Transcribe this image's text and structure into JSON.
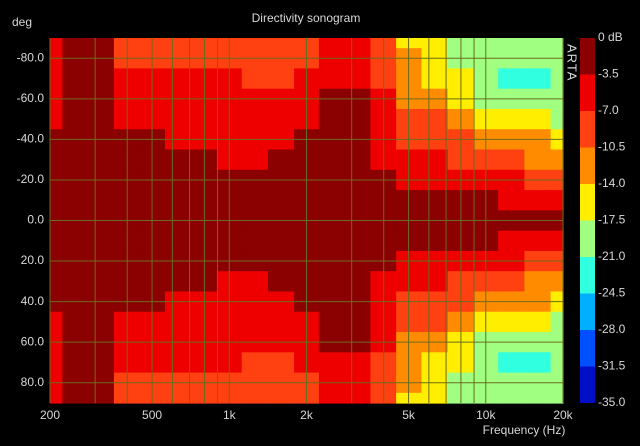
{
  "chart_data": {
    "type": "heatmap",
    "title": "Directivity sonogram",
    "y_label": "deg",
    "x_label": "Frequency (Hz)",
    "watermark": "ARTA",
    "log_x": true,
    "grid": true,
    "xlim": [
      200,
      20000
    ],
    "xticks": [
      200,
      500,
      {
        "value": 1000,
        "label": "1k"
      },
      {
        "value": 2000,
        "label": "2k"
      },
      {
        "value": 5000,
        "label": "5k"
      },
      {
        "value": 10000,
        "label": "10k"
      },
      {
        "value": 20000,
        "label": "20k"
      }
    ],
    "xminor_ticks": [
      300,
      400,
      600,
      700,
      800,
      900,
      3000,
      4000,
      6000,
      7000,
      8000,
      9000
    ],
    "ylim": [
      -90,
      90
    ],
    "yticks": [
      {
        "value": -80,
        "label": "-80.0"
      },
      {
        "value": -60,
        "label": "-60.0"
      },
      {
        "value": -40,
        "label": "-40.0"
      },
      {
        "value": -20,
        "label": "-20.0"
      },
      {
        "value": 0,
        "label": "0.0"
      },
      {
        "value": 20,
        "label": "20.0"
      },
      {
        "value": 40,
        "label": "40.0"
      },
      {
        "value": 60,
        "label": "60.0"
      },
      {
        "value": 80,
        "label": "80.0"
      }
    ],
    "x": [
      200,
      250,
      315,
      400,
      500,
      630,
      800,
      1000,
      1250,
      1600,
      2000,
      2500,
      3150,
      4000,
      5000,
      6300,
      8000,
      10000,
      12500,
      16000,
      20000
    ],
    "y": [
      -90,
      -80,
      -70,
      -60,
      -50,
      -40,
      -30,
      -20,
      -10,
      0,
      10,
      20,
      30,
      40,
      50,
      60,
      70,
      80,
      90
    ],
    "z": [
      [
        -6,
        -3,
        -3,
        -8,
        -9,
        -9,
        -9,
        -9,
        -10,
        -10,
        -8,
        -6,
        -6,
        -10,
        -15,
        -17,
        -20,
        -19,
        -19,
        -18,
        -18
      ],
      [
        -6,
        -3,
        -3,
        -7.5,
        -8,
        -8,
        -8,
        -8,
        -9,
        -9,
        -7.5,
        -5,
        -5,
        -9,
        -13,
        -16,
        -19,
        -20,
        -20,
        -19,
        -19
      ],
      [
        -5,
        -3,
        -2.5,
        -6,
        -6,
        -7,
        -7,
        -7,
        -7.5,
        -8,
        -6,
        -4,
        -4,
        -7.5,
        -12,
        -14.5,
        -17,
        -19,
        -22,
        -22,
        -21
      ],
      [
        -5,
        -2.5,
        -2,
        -5,
        -5.5,
        -6,
        -6,
        -6,
        -6.5,
        -6.5,
        -5,
        -3,
        -3,
        -6,
        -11,
        -12,
        -15,
        -18,
        -19,
        -19,
        -19
      ],
      [
        -4,
        -2,
        -1.5,
        -4,
        -5,
        -5,
        -5,
        -5.5,
        -6,
        -5,
        -4,
        -2,
        -2.5,
        -5.5,
        -9,
        -10,
        -12,
        -15,
        -16,
        -17,
        -18
      ],
      [
        -2,
        -1.5,
        -1,
        -2,
        -3,
        -4,
        -4,
        -5,
        -5,
        -4,
        -3,
        -1.5,
        -2,
        -5,
        -7.5,
        -8,
        -10,
        -12,
        -13,
        -14,
        -15
      ],
      [
        -1.5,
        -1,
        -1,
        -1.5,
        -1.5,
        -2,
        -2.5,
        -4,
        -4,
        -3,
        -2,
        -1,
        -1.5,
        -4,
        -5,
        -6,
        -7.5,
        -9,
        -10,
        -11,
        -12
      ],
      [
        -1,
        -1,
        -1,
        -1,
        -1,
        -1,
        -1.5,
        -2,
        -2,
        -2,
        -1.5,
        -1,
        -1,
        -3,
        -4,
        -4,
        -5,
        -6,
        -7,
        -8,
        -9
      ],
      [
        -1,
        -1,
        -1,
        -1,
        -1,
        -1,
        -1,
        -1,
        -1,
        -1.5,
        -1,
        -0.5,
        -0.5,
        -1.5,
        -2,
        -2.5,
        -3,
        -3.5,
        -4,
        -4.5,
        -5
      ],
      [
        -1,
        -1,
        -1,
        -1,
        -1,
        -1,
        -1,
        -1,
        -1,
        -1,
        -0.5,
        -0.5,
        -0.5,
        -1,
        -1,
        -1,
        -1.5,
        -1.5,
        -2,
        -2,
        -2.5
      ],
      [
        -1,
        -1,
        -1,
        -1,
        -1,
        -1,
        -1,
        -1,
        -1,
        -1.5,
        -1,
        -0.5,
        -0.5,
        -1.5,
        -2,
        -2.5,
        -3,
        -3.5,
        -4,
        -4.5,
        -5
      ],
      [
        -1,
        -1,
        -1,
        -1,
        -1,
        -1,
        -1.5,
        -2,
        -2,
        -2,
        -1.5,
        -1,
        -1,
        -3,
        -4,
        -4,
        -5,
        -6,
        -7,
        -8,
        -9
      ],
      [
        -1.5,
        -1,
        -1,
        -1.5,
        -1.5,
        -2,
        -2.5,
        -4,
        -4,
        -3,
        -2,
        -1,
        -1.5,
        -4,
        -5,
        -6,
        -7.5,
        -9,
        -10,
        -11,
        -12
      ],
      [
        -2,
        -1.5,
        -1,
        -2,
        -3,
        -4,
        -4,
        -5,
        -5,
        -4,
        -3,
        -1.5,
        -2,
        -5,
        -7.5,
        -8,
        -10,
        -12,
        -13,
        -14,
        -15
      ],
      [
        -4,
        -2,
        -1.5,
        -4,
        -5,
        -5,
        -5,
        -5.5,
        -6,
        -5,
        -4,
        -2,
        -2.5,
        -5.5,
        -9,
        -10,
        -12,
        -15,
        -16,
        -17,
        -18
      ],
      [
        -5,
        -2.5,
        -2,
        -5,
        -5.5,
        -6,
        -6,
        -6,
        -6.5,
        -6.5,
        -5,
        -3,
        -3,
        -6,
        -11,
        -12,
        -15,
        -18,
        -19,
        -19,
        -19
      ],
      [
        -5,
        -3,
        -2.5,
        -6,
        -6,
        -7,
        -7,
        -7,
        -7.5,
        -8,
        -6,
        -4,
        -4,
        -7.5,
        -12,
        -14.5,
        -17,
        -19,
        -22,
        -22,
        -21
      ],
      [
        -6,
        -3,
        -3,
        -7.5,
        -8,
        -8,
        -8,
        -8,
        -9,
        -9,
        -7.5,
        -5,
        -5,
        -9,
        -13,
        -16,
        -19,
        -20,
        -20,
        -19,
        -19
      ],
      [
        -6,
        -3,
        -3,
        -8,
        -9,
        -9,
        -9,
        -9,
        -10,
        -10,
        -8,
        -6,
        -6,
        -10,
        -15,
        -17,
        -20,
        -19,
        -19,
        -18,
        -18
      ]
    ],
    "colorbar_ticks": [
      {
        "value": 0,
        "label": "0 dB"
      },
      -3.5,
      {
        "value": -7,
        "label": "-7.0"
      },
      -10.5,
      {
        "value": -14,
        "label": "-14.0"
      },
      -17.5,
      {
        "value": -21,
        "label": "-21.0"
      },
      -24.5,
      {
        "value": -28,
        "label": "-28.0"
      },
      -31.5,
      {
        "value": -35,
        "label": "-35.0"
      }
    ],
    "colors": [
      "#8b0000",
      "#ee0000",
      "#ff4010",
      "#ff8c00",
      "#ffee00",
      "#a0ff80",
      "#30ffe0",
      "#00b0ff",
      "#0050ff",
      "#0010c8"
    ]
  }
}
